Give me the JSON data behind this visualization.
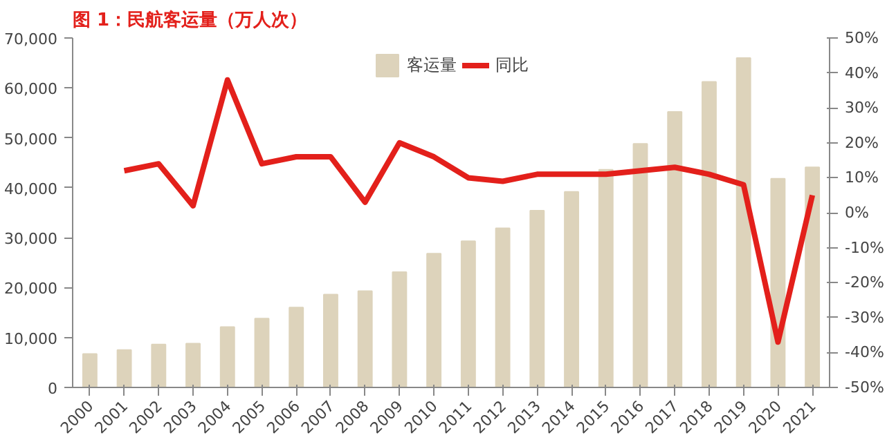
{
  "chart_data": {
    "type": "bar",
    "title": "图 1：民航客运量（万人次）",
    "categories": [
      "2000",
      "2001",
      "2002",
      "2003",
      "2004",
      "2005",
      "2006",
      "2007",
      "2008",
      "2009",
      "2010",
      "2011",
      "2012",
      "2013",
      "2014",
      "2015",
      "2016",
      "2017",
      "2018",
      "2019",
      "2020",
      "2021"
    ],
    "series": [
      {
        "name": "客运量",
        "color": "#ddd3bb",
        "values": [
          6700,
          7500,
          8600,
          8800,
          12100,
          13800,
          16000,
          18600,
          19300,
          23100,
          26800,
          29300,
          31900,
          35400,
          39200,
          43600,
          48800,
          55200,
          61200,
          66000,
          41800,
          44100
        ]
      },
      {
        "name": "同比",
        "type": "line",
        "axis": "y2",
        "color": "#e3201b",
        "values": [
          null,
          12,
          14,
          2,
          38,
          14,
          16,
          16,
          3,
          20,
          16,
          10,
          9,
          11,
          11,
          11,
          12,
          13,
          11,
          8,
          -37,
          5
        ]
      }
    ],
    "ylim": [
      0,
      70000
    ],
    "yticks": [
      0,
      {
        "value": 10000,
        "label": "10,000"
      },
      {
        "value": 20000,
        "label": "20,000"
      },
      {
        "value": 30000,
        "label": "30,000"
      },
      {
        "value": 40000,
        "label": "40,000"
      },
      {
        "value": 50000,
        "label": "50,000"
      },
      {
        "value": 60000,
        "label": "60,000"
      },
      {
        "value": 70000,
        "label": "70,000"
      }
    ],
    "y2lim": [
      -50,
      50
    ],
    "y2ticks": [
      {
        "value": -50,
        "label": "-50%"
      },
      {
        "value": -40,
        "label": "-40%"
      },
      {
        "value": -30,
        "label": "-30%"
      },
      {
        "value": -20,
        "label": "-20%"
      },
      {
        "value": -10,
        "label": "-10%"
      },
      {
        "value": 0,
        "label": "0%"
      },
      {
        "value": 10,
        "label": "10%"
      },
      {
        "value": 20,
        "label": "20%"
      },
      {
        "value": 30,
        "label": "30%"
      },
      {
        "value": 40,
        "label": "40%"
      },
      {
        "value": 50,
        "label": "50%"
      }
    ],
    "legend": "top",
    "grid": false
  }
}
